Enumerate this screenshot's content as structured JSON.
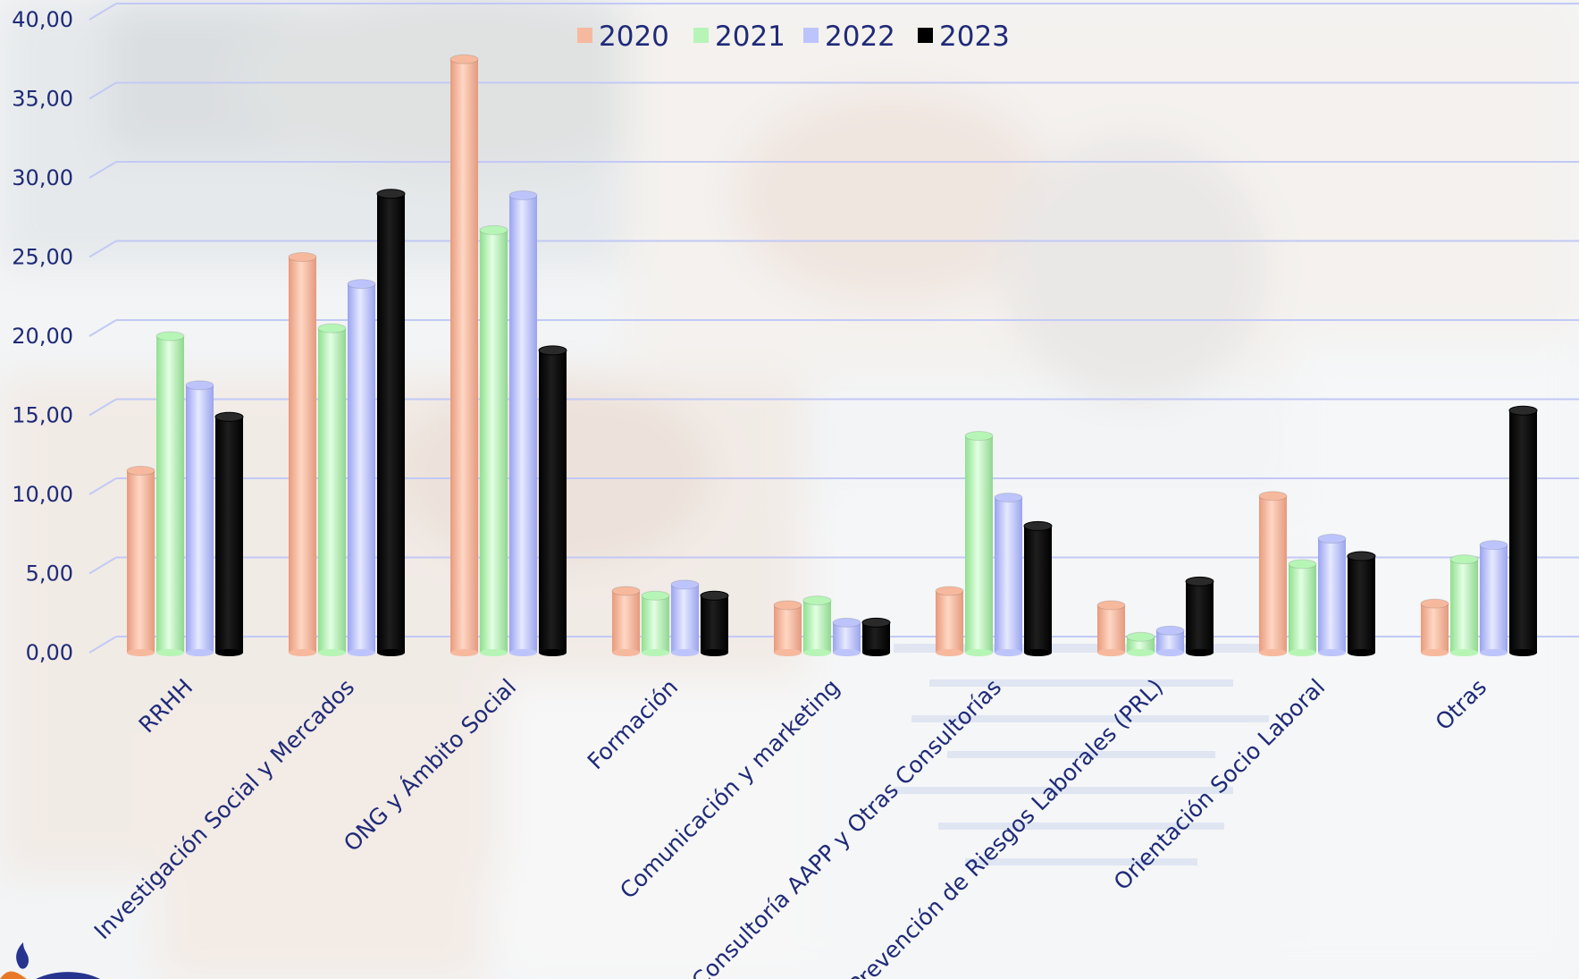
{
  "chart_data": {
    "type": "bar",
    "categories": [
      "RRHH",
      "Investigación Social y Mercados",
      "ONG y Ámbito Social",
      "Formación",
      "Comunicación y marketing",
      "Consultoría AAPP y Otras Consultorías",
      "Prevención de Riesgos Laborales (PRL)",
      "Orientación Socio Laboral",
      "Otras"
    ],
    "series": [
      {
        "name": "2020",
        "color": "#f6b99e",
        "values": [
          11.5,
          25.0,
          37.5,
          3.9,
          3.0,
          3.9,
          3.0,
          9.9,
          3.1
        ]
      },
      {
        "name": "2021",
        "color": "#b6f5b6",
        "values": [
          20.0,
          20.5,
          26.7,
          3.6,
          3.3,
          13.7,
          1.0,
          5.6,
          5.9
        ]
      },
      {
        "name": "2022",
        "color": "#bcc4fb",
        "values": [
          16.9,
          23.3,
          28.9,
          4.3,
          1.9,
          9.8,
          1.4,
          7.2,
          6.8
        ]
      },
      {
        "name": "2023",
        "color": "#000000",
        "values": [
          14.9,
          29.0,
          19.1,
          3.6,
          1.9,
          8.0,
          4.5,
          6.1,
          15.3
        ]
      }
    ],
    "ylim": [
      0,
      40
    ],
    "yticks": [
      "0,00",
      "5,00",
      "10,00",
      "15,00",
      "20,00",
      "25,00",
      "30,00",
      "35,00",
      "40,00"
    ],
    "grid": true,
    "legend_position": "top-center",
    "xlabel": "",
    "ylabel": ""
  },
  "colors": {
    "axis_text": "#1f2a78",
    "gridline": "#c2c9f5"
  }
}
